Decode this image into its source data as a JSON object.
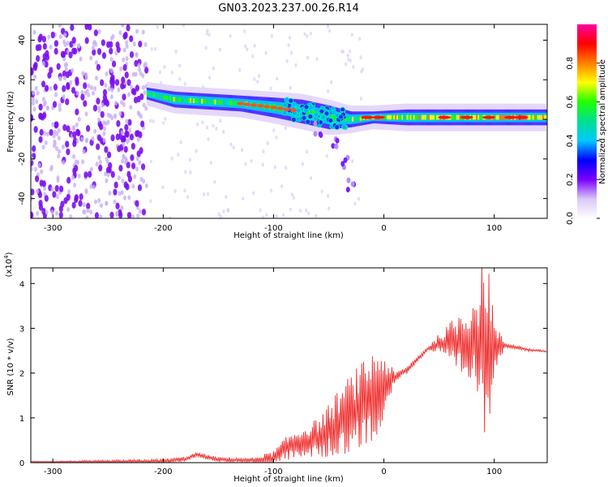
{
  "title": "GN03.2023.237.00.26.R14",
  "chart_data": [
    {
      "type": "heatmap",
      "name": "spectrogram",
      "xlabel": "Height of straight line (km)",
      "ylabel": "Frequency (Hz)",
      "xlim": [
        -320,
        148
      ],
      "ylim": [
        -50,
        48
      ],
      "xticks": [
        -300,
        -200,
        -100,
        0,
        100
      ],
      "yticks": [
        -40,
        -20,
        0,
        20,
        40
      ],
      "colorbar": {
        "label": "Normalized spectral amplitude",
        "range": [
          0,
          1
        ],
        "ticks": [
          "0.0",
          "0.2",
          "0.4",
          "0.6",
          "0.8"
        ],
        "tick_values": [
          0.0,
          0.2,
          0.4,
          0.6,
          0.8
        ],
        "colors": [
          "#ffffff",
          "#d8c8f8",
          "#7a00ff",
          "#0000ff",
          "#00c8ff",
          "#00e090",
          "#20ff00",
          "#ffff00",
          "#ff8000",
          "#ff0000",
          "#ff00a0"
        ]
      },
      "noise_region": {
        "x": [
          -320,
          -215
        ],
        "y": [
          -50,
          48
        ],
        "level": 0.15
      },
      "ridge": [
        {
          "x": -215,
          "y": 13,
          "width": 3,
          "amp": 0.45
        },
        {
          "x": -190,
          "y": 10,
          "width": 4,
          "amp": 0.55
        },
        {
          "x": -160,
          "y": 9,
          "width": 4,
          "amp": 0.5
        },
        {
          "x": -130,
          "y": 8,
          "width": 4,
          "amp": 0.5
        },
        {
          "x": -100,
          "y": 6,
          "width": 5,
          "amp": 0.45
        },
        {
          "x": -75,
          "y": 4,
          "width": 6,
          "amp": 0.45
        },
        {
          "x": -50,
          "y": 1,
          "width": 6,
          "amp": 0.45
        },
        {
          "x": -30,
          "y": 0,
          "width": 4,
          "amp": 0.55
        },
        {
          "x": -10,
          "y": 1,
          "width": 3,
          "amp": 0.75
        },
        {
          "x": 20,
          "y": 1,
          "width": 4,
          "amp": 0.6
        },
        {
          "x": 60,
          "y": 1,
          "width": 4,
          "amp": 0.7
        },
        {
          "x": 90,
          "y": 1,
          "width": 4,
          "amp": 0.7
        },
        {
          "x": 120,
          "y": 1,
          "width": 4,
          "amp": 0.8
        },
        {
          "x": 148,
          "y": 1,
          "width": 4,
          "amp": 0.6
        }
      ],
      "branch": [
        {
          "x": -60,
          "y": -5
        },
        {
          "x": -45,
          "y": -12
        },
        {
          "x": -35,
          "y": -22
        },
        {
          "x": -30,
          "y": -33
        }
      ]
    },
    {
      "type": "line",
      "name": "snr",
      "xlabel": "Height of straight line (km)",
      "ylabel": "SNR (10 * v/v)",
      "exponent_label": "(x10",
      "exponent": "4",
      "exponent_close": ")",
      "xlim": [
        -320,
        148
      ],
      "ylim": [
        0,
        4.35
      ],
      "xticks": [
        -300,
        -200,
        -100,
        0,
        100
      ],
      "yticks": [
        0,
        1,
        2,
        3,
        4
      ],
      "color": "#ee2a2a",
      "envelope_x": [
        -320,
        -250,
        -200,
        -180,
        -170,
        -150,
        -120,
        -100,
        -90,
        -80,
        -60,
        -50,
        -40,
        -30,
        -20,
        -10,
        0,
        10,
        20,
        30,
        40,
        50,
        60,
        70,
        80,
        90,
        95,
        100,
        110,
        120,
        130,
        148
      ],
      "envelope_y": [
        0.02,
        0.02,
        0.03,
        0.08,
        0.18,
        0.07,
        0.05,
        0.1,
        0.3,
        0.4,
        0.55,
        0.7,
        0.9,
        1.1,
        1.25,
        1.5,
        1.75,
        1.9,
        2.05,
        2.3,
        2.55,
        2.65,
        2.65,
        2.65,
        2.7,
        2.65,
        2.65,
        2.6,
        2.62,
        2.58,
        2.52,
        2.48
      ],
      "noise_x": [
        -320,
        -200,
        -120,
        -100,
        -80,
        -60,
        -40,
        -20,
        -5,
        10,
        40,
        55,
        65,
        75,
        85,
        90,
        95,
        100,
        110,
        148
      ],
      "noise_amp": [
        0.01,
        0.05,
        0.05,
        0.15,
        0.3,
        0.4,
        0.7,
        0.9,
        0.9,
        0.1,
        0.04,
        0.3,
        0.6,
        0.8,
        1.1,
        1.8,
        1.9,
        0.5,
        0.05,
        0.02
      ]
    }
  ]
}
